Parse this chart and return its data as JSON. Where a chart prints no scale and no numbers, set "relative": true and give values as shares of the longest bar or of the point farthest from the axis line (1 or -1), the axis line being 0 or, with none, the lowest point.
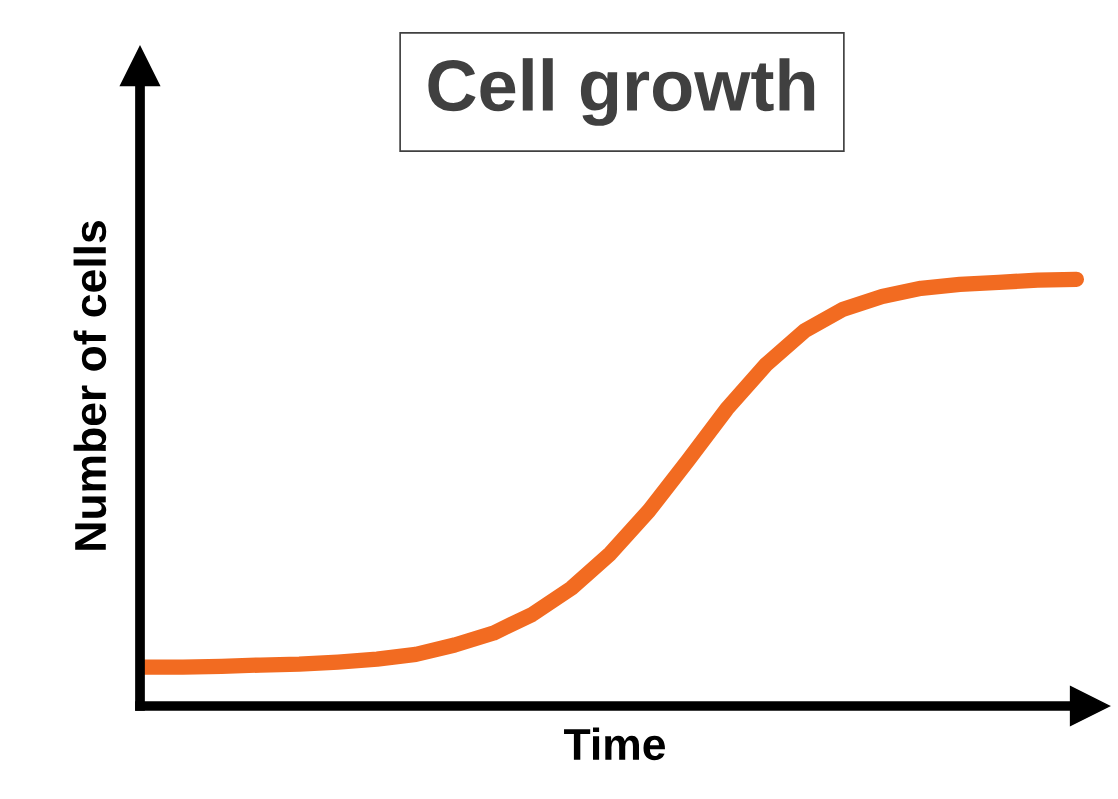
{
  "chart_data": {
    "type": "line",
    "title": "Cell growth",
    "xlabel": "Time",
    "ylabel": "Number of cells",
    "relative": true,
    "grid": false,
    "legend": false,
    "line_style": "solid",
    "categories": [
      null,
      null,
      null,
      null,
      null,
      null,
      null,
      null,
      null,
      null,
      null,
      null,
      null,
      null,
      null,
      null,
      null,
      null,
      null,
      null,
      null,
      null,
      null,
      null,
      null
    ],
    "series": [
      {
        "color": "#f26b21",
        "values": [
          0.091,
          0.091,
          0.093,
          0.096,
          0.098,
          0.103,
          0.11,
          0.121,
          0.143,
          0.171,
          0.215,
          0.276,
          0.357,
          0.458,
          0.575,
          0.696,
          0.799,
          0.879,
          0.93,
          0.96,
          0.979,
          0.988,
          0.993,
          0.998,
          1.0
        ]
      }
    ]
  }
}
